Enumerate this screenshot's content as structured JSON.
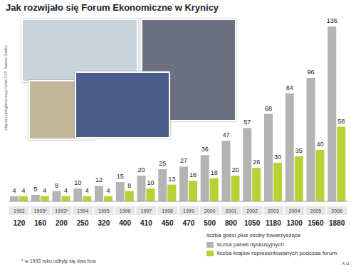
{
  "title": "Jak rozwijało się Forum Ekonomiczne w Krynicy",
  "credit": "zdjęcia z ubiegłorocznego forum FOT. Dariusz Stańko",
  "author": "A.U.",
  "footnote": "* w 1993 roku odbyły się dwa fora",
  "chart_data": {
    "type": "bar",
    "categories": [
      "1992",
      "1993*",
      "1993*",
      "1994",
      "1995",
      "1996",
      "1997",
      "1998",
      "1999",
      "2000",
      "2001",
      "2002",
      "2003",
      "2004",
      "2005",
      "2006"
    ],
    "series": [
      {
        "name": "liczba paneli dyskusyjnych",
        "color": "#b4b4b4",
        "values": [
          4,
          5,
          8,
          10,
          12,
          15,
          20,
          25,
          27,
          36,
          47,
          57,
          68,
          84,
          96,
          136
        ]
      },
      {
        "name": "liczba krajów reprezentowanych podczas forum",
        "color": "#b5d334",
        "values": [
          4,
          4,
          4,
          4,
          4,
          8,
          10,
          13,
          16,
          18,
          20,
          26,
          30,
          35,
          40,
          58
        ]
      }
    ],
    "guests": {
      "name": "liczba gości plus osoby towarzyszące",
      "values": [
        120,
        160,
        200,
        250,
        320,
        400,
        410,
        450,
        470,
        500,
        800,
        1050,
        1180,
        1300,
        1560,
        1880
      ]
    },
    "ylim": [
      0,
      136
    ],
    "data_labels": true,
    "tick_labels": "x",
    "legend": "lower right"
  }
}
